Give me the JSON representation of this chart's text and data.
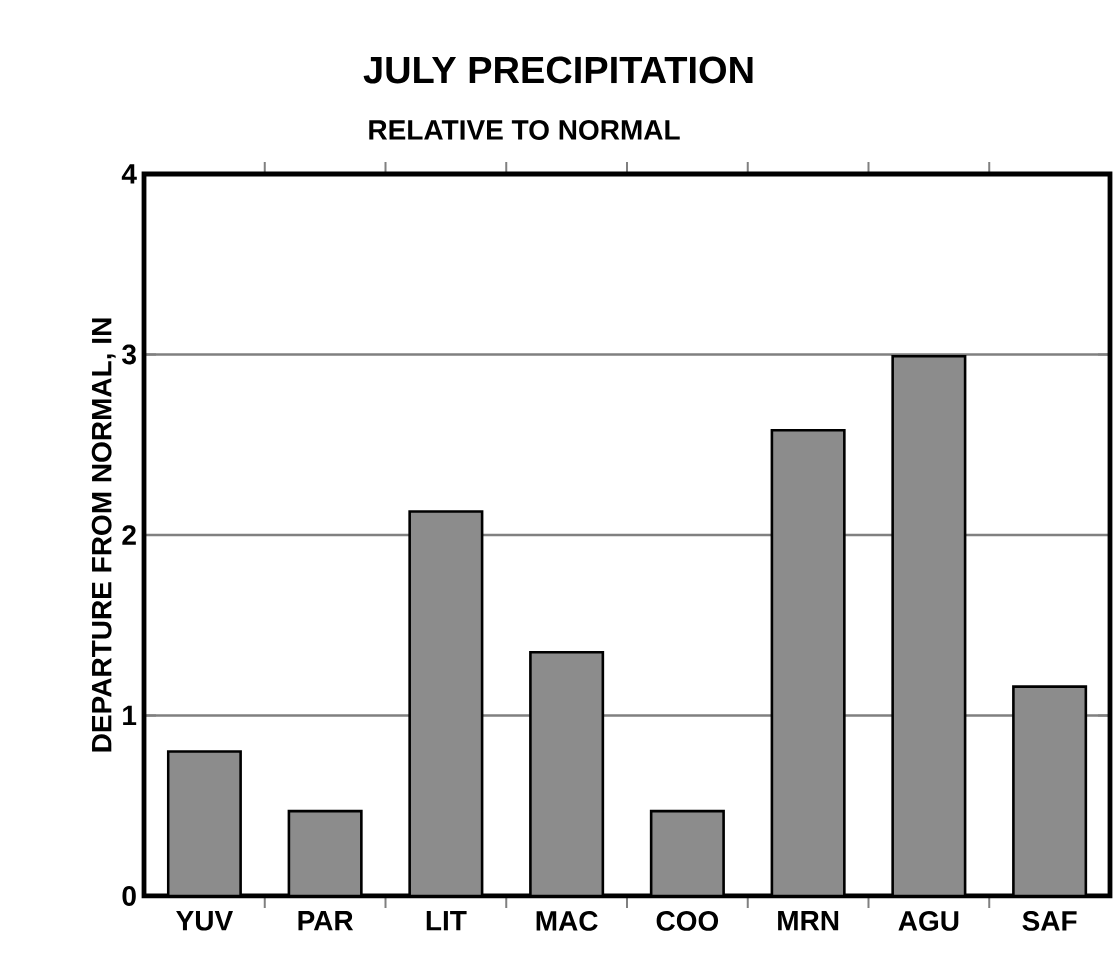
{
  "chart_data": {
    "type": "bar",
    "title": "JULY PRECIPITATION",
    "subtitle": "RELATIVE TO NORMAL",
    "ylabel": "DEPARTURE FROM NORMAL, IN",
    "categories": [
      "YUV",
      "PAR",
      "LIT",
      "MAC",
      "COO",
      "MRN",
      "AGU",
      "SAF"
    ],
    "values": [
      0.8,
      0.47,
      2.13,
      1.35,
      0.47,
      2.58,
      2.99,
      1.16
    ],
    "color": "#8c8c8c",
    "ylim": [
      0,
      4
    ],
    "yticks": [
      0,
      1,
      2,
      3,
      4
    ],
    "grid": "y"
  }
}
